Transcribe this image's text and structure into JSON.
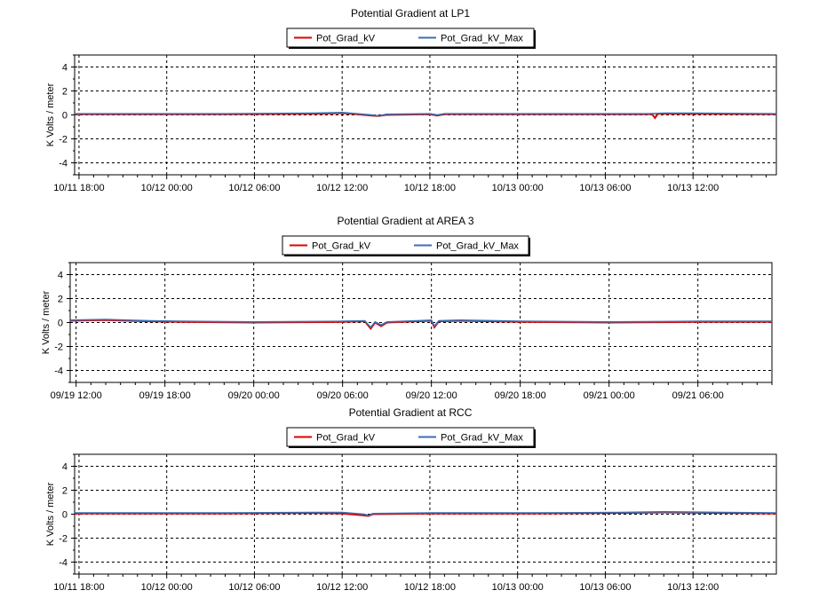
{
  "chart_data": [
    {
      "type": "line",
      "title": "Potential Gradient at LP1",
      "ylabel": "K Volts / meter",
      "xlabel": "",
      "ylim": [
        -5,
        5
      ],
      "yticks": [
        4,
        2,
        0,
        -2,
        -4
      ],
      "xticks": [
        "10/11 18:00",
        "10/12 00:00",
        "10/12 06:00",
        "10/12 12:00",
        "10/12 18:00",
        "10/13 00:00",
        "10/13 06:00",
        "10/13 12:00"
      ],
      "xrange_hours": [
        -0.3,
        47.7
      ],
      "grid": true,
      "legend": "top-center",
      "series": [
        {
          "name": "Pot_Grad_kV",
          "color": "#e00000",
          "points": [
            [
              -0.3,
              0.05
            ],
            [
              3,
              0.05
            ],
            [
              10,
              0.05
            ],
            [
              16,
              0.1
            ],
            [
              18,
              0.15
            ],
            [
              19,
              0.05
            ],
            [
              20,
              -0.05
            ],
            [
              20.5,
              -0.1
            ],
            [
              21,
              0.0
            ],
            [
              24,
              0.05
            ],
            [
              24.5,
              -0.05
            ],
            [
              25,
              0.05
            ],
            [
              31,
              0.05
            ],
            [
              39.2,
              0.05
            ],
            [
              39.4,
              -0.25
            ],
            [
              39.6,
              0.1
            ],
            [
              42,
              0.1
            ],
            [
              47.7,
              0.05
            ]
          ]
        },
        {
          "name": "Pot_Grad_kV_Max",
          "color": "#3a6fb0",
          "points": [
            [
              -0.3,
              0.1
            ],
            [
              3,
              0.1
            ],
            [
              10,
              0.1
            ],
            [
              16,
              0.15
            ],
            [
              18,
              0.2
            ],
            [
              19,
              0.1
            ],
            [
              20,
              0.0
            ],
            [
              20.5,
              -0.1
            ],
            [
              21,
              0.05
            ],
            [
              24,
              0.1
            ],
            [
              24.5,
              0.0
            ],
            [
              25,
              0.1
            ],
            [
              31,
              0.1
            ],
            [
              39,
              0.1
            ],
            [
              40,
              0.15
            ],
            [
              42,
              0.15
            ],
            [
              47.7,
              0.1
            ]
          ]
        }
      ]
    },
    {
      "type": "line",
      "title": "Potential Gradient at AREA 3",
      "ylabel": "K Volts / meter",
      "xlabel": "",
      "ylim": [
        -5,
        5
      ],
      "yticks": [
        4,
        2,
        0,
        -2,
        -4
      ],
      "xticks": [
        "09/19 12:00",
        "09/19 18:00",
        "09/20 00:00",
        "09/20 06:00",
        "09/20 12:00",
        "09/20 18:00",
        "09/21 00:00",
        "09/21 06:00"
      ],
      "xrange_hours": [
        -0.4,
        47
      ],
      "grid": true,
      "legend": "top-center",
      "series": [
        {
          "name": "Pot_Grad_kV",
          "color": "#e00000",
          "points": [
            [
              -0.4,
              0.15
            ],
            [
              2,
              0.2
            ],
            [
              5,
              0.1
            ],
            [
              7,
              0.05
            ],
            [
              12,
              0.0
            ],
            [
              18,
              0.05
            ],
            [
              19.5,
              0.1
            ],
            [
              19.9,
              -0.5
            ],
            [
              20.2,
              0.0
            ],
            [
              20.6,
              -0.3
            ],
            [
              21,
              0.0
            ],
            [
              23,
              0.1
            ],
            [
              24,
              0.15
            ],
            [
              24.2,
              -0.4
            ],
            [
              24.5,
              0.1
            ],
            [
              26,
              0.15
            ],
            [
              30,
              0.05
            ],
            [
              36,
              0.0
            ],
            [
              42,
              0.05
            ],
            [
              47,
              0.05
            ]
          ]
        },
        {
          "name": "Pot_Grad_kV_Max",
          "color": "#3a6fb0",
          "points": [
            [
              -0.4,
              0.2
            ],
            [
              2,
              0.25
            ],
            [
              5,
              0.15
            ],
            [
              7,
              0.1
            ],
            [
              12,
              0.05
            ],
            [
              18,
              0.1
            ],
            [
              19.5,
              0.15
            ],
            [
              19.9,
              -0.4
            ],
            [
              20.2,
              0.05
            ],
            [
              20.6,
              -0.2
            ],
            [
              21,
              0.05
            ],
            [
              23,
              0.15
            ],
            [
              24,
              0.2
            ],
            [
              24.2,
              -0.3
            ],
            [
              24.5,
              0.15
            ],
            [
              26,
              0.2
            ],
            [
              30,
              0.1
            ],
            [
              36,
              0.05
            ],
            [
              42,
              0.1
            ],
            [
              47,
              0.1
            ]
          ]
        }
      ]
    },
    {
      "type": "line",
      "title": "Potential Gradient at RCC",
      "ylabel": "K Volts / meter",
      "xlabel": "",
      "ylim": [
        -5,
        5
      ],
      "yticks": [
        4,
        2,
        0,
        -2,
        -4
      ],
      "xticks": [
        "10/11 18:00",
        "10/12 00:00",
        "10/12 06:00",
        "10/12 12:00",
        "10/12 18:00",
        "10/13 00:00",
        "10/13 06:00",
        "10/13 12:00"
      ],
      "xrange_hours": [
        -0.3,
        47.7
      ],
      "grid": true,
      "legend": "top-center",
      "series": [
        {
          "name": "Pot_Grad_kV",
          "color": "#e00000",
          "points": [
            [
              -0.3,
              0.05
            ],
            [
              3,
              0.05
            ],
            [
              10,
              0.05
            ],
            [
              16,
              0.1
            ],
            [
              18,
              0.05
            ],
            [
              19.5,
              -0.1
            ],
            [
              19.8,
              -0.15
            ],
            [
              20.1,
              0.0
            ],
            [
              24,
              0.05
            ],
            [
              31,
              0.05
            ],
            [
              37,
              0.1
            ],
            [
              40,
              0.15
            ],
            [
              44,
              0.1
            ],
            [
              47.7,
              0.05
            ]
          ]
        },
        {
          "name": "Pot_Grad_kV_Max",
          "color": "#3a6fb0",
          "points": [
            [
              -0.3,
              0.1
            ],
            [
              3,
              0.1
            ],
            [
              10,
              0.1
            ],
            [
              16,
              0.15
            ],
            [
              18,
              0.15
            ],
            [
              19.5,
              0.0
            ],
            [
              19.8,
              -0.1
            ],
            [
              20.1,
              0.05
            ],
            [
              24,
              0.1
            ],
            [
              31,
              0.1
            ],
            [
              37,
              0.15
            ],
            [
              40,
              0.2
            ],
            [
              44,
              0.15
            ],
            [
              47.7,
              0.1
            ]
          ]
        }
      ]
    }
  ]
}
